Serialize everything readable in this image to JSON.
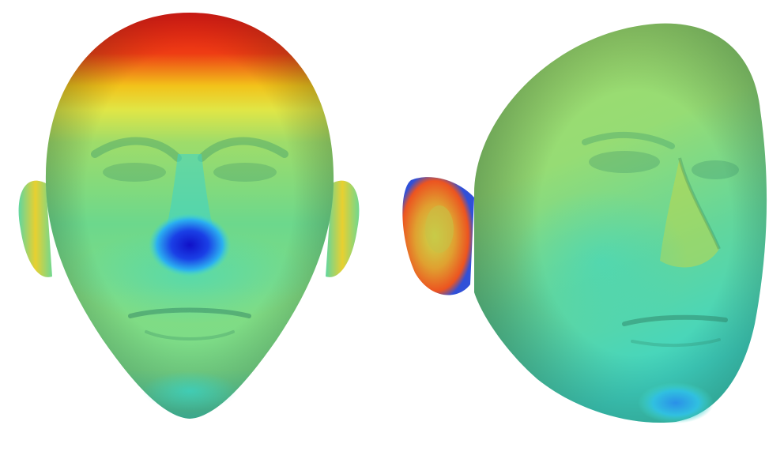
{
  "scene": {
    "background": "#ffffff",
    "description_colormap": [
      "#1420c8",
      "#20b4ff",
      "#2fe0d0",
      "#8ee07a",
      "#d8e84a",
      "#f0d020",
      "#f06018",
      "#dc1414"
    ],
    "faces": [
      {
        "view": "frontal",
        "dominant_color": "#8ed870",
        "highlight_color": "#e42a14",
        "low_color": "#1e2ae0"
      },
      {
        "view": "three-quarter",
        "dominant_color": "#98dc6e",
        "highlight_color": "#d84a1a",
        "low_color": "#2d80e8"
      }
    ]
  }
}
